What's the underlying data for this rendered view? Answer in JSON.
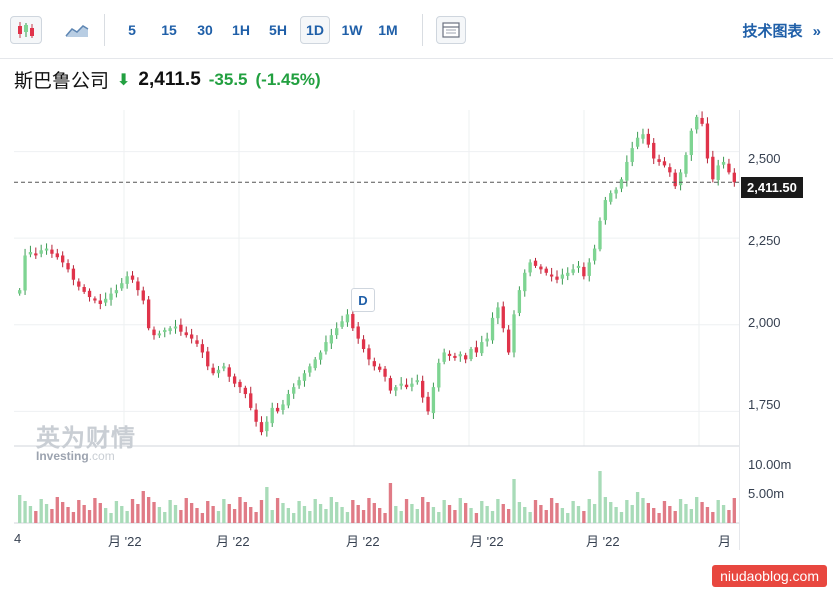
{
  "toolbar": {
    "intervals": [
      "5",
      "15",
      "30",
      "1H",
      "5H",
      "1D",
      "1W",
      "1M"
    ],
    "active_interval": "1D",
    "tech_chart_label": "技术图表",
    "tech_chart_arrow": "»",
    "icons": [
      "candlestick-icon",
      "area-chart-icon",
      "layout-icon"
    ]
  },
  "quote": {
    "name": "斯巴鲁公司",
    "price": "2,411.5",
    "change": "-35.5",
    "change_pct": "(-1.45%)"
  },
  "chart": {
    "last_price_tag": "2,411.50",
    "y_labels": [
      "2,500",
      "2,250",
      "2,000",
      "1,750"
    ],
    "volume_labels": [
      "10.00m",
      "5.00m"
    ],
    "x_labels": [
      "4",
      "月 '22",
      "月 '22",
      "月 '22",
      "月 '22",
      "月 '22",
      "月"
    ],
    "event_marker": "D",
    "watermark_cn": "英为财情",
    "watermark_en": "Investing",
    "watermark_en_suffix": ".com",
    "colors": {
      "up": "#7ed492",
      "down": "#e0334a",
      "vol_up": "#a8dbb8",
      "vol_down": "#e07b86"
    }
  },
  "footer_link": "niudaoblog.com",
  "chart_data": {
    "type": "candlestick",
    "ylim": [
      1650,
      2620
    ],
    "last_price": 2411.5,
    "closes": [
      2100,
      2200,
      2210,
      2205,
      2215,
      2220,
      2205,
      2195,
      2180,
      2160,
      2130,
      2110,
      2095,
      2080,
      2070,
      2060,
      2075,
      2090,
      2100,
      2120,
      2140,
      2130,
      2100,
      2070,
      1990,
      1970,
      1975,
      1985,
      1990,
      1995,
      1980,
      1970,
      1960,
      1945,
      1920,
      1880,
      1860,
      1870,
      1880,
      1850,
      1830,
      1820,
      1800,
      1760,
      1720,
      1690,
      1720,
      1760,
      1750,
      1770,
      1800,
      1820,
      1840,
      1860,
      1880,
      1900,
      1920,
      1950,
      1970,
      1990,
      2010,
      2030,
      1990,
      1960,
      1930,
      1900,
      1880,
      1870,
      1850,
      1810,
      1820,
      1830,
      1820,
      1830,
      1840,
      1790,
      1750,
      1820,
      1890,
      1920,
      1910,
      1905,
      1915,
      1900,
      1930,
      1920,
      1950,
      1960,
      2020,
      2050,
      1990,
      1920,
      2030,
      2100,
      2150,
      2180,
      2170,
      2160,
      2150,
      2140,
      2130,
      2145,
      2150,
      2160,
      2170,
      2140,
      2180,
      2220,
      2300,
      2360,
      2380,
      2390,
      2420,
      2470,
      2510,
      2540,
      2550,
      2520,
      2480,
      2470,
      2460,
      2440,
      2400,
      2440,
      2490,
      2560,
      2600,
      2580,
      2480,
      2420,
      2460,
      2470,
      2440,
      2411.5
    ]
  }
}
